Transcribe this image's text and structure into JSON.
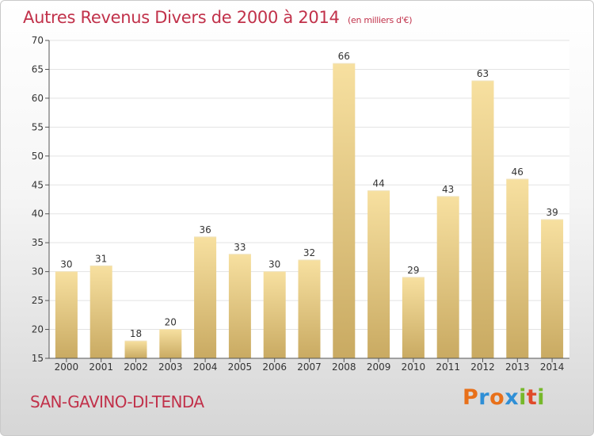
{
  "header": {
    "title": "Autres Revenus Divers de 2000 à 2014",
    "unit": "(en milliers d'€)"
  },
  "footer": {
    "place": "SAN-GAVINO-DI-TENDA",
    "logo_text": "Proxiti"
  },
  "colors": {
    "title": "#c1314a",
    "bar_light": "#f7e0a0",
    "bar_dark": "#c9aa62",
    "grid": "#e3e3e3"
  },
  "chart_data": {
    "type": "bar",
    "title": "Autres Revenus Divers de 2000 à 2014",
    "subtitle": "(en milliers d'€)",
    "categories": [
      "2000",
      "2001",
      "2002",
      "2003",
      "2004",
      "2005",
      "2006",
      "2007",
      "2008",
      "2009",
      "2010",
      "2011",
      "2012",
      "2013",
      "2014"
    ],
    "values": [
      30,
      31,
      18,
      20,
      36,
      33,
      30,
      32,
      66,
      44,
      29,
      43,
      63,
      46,
      39
    ],
    "ylim": [
      15,
      70
    ],
    "yticks": [
      15,
      20,
      25,
      30,
      35,
      40,
      45,
      50,
      55,
      60,
      65,
      70
    ],
    "grid": true,
    "data_labels": true
  }
}
